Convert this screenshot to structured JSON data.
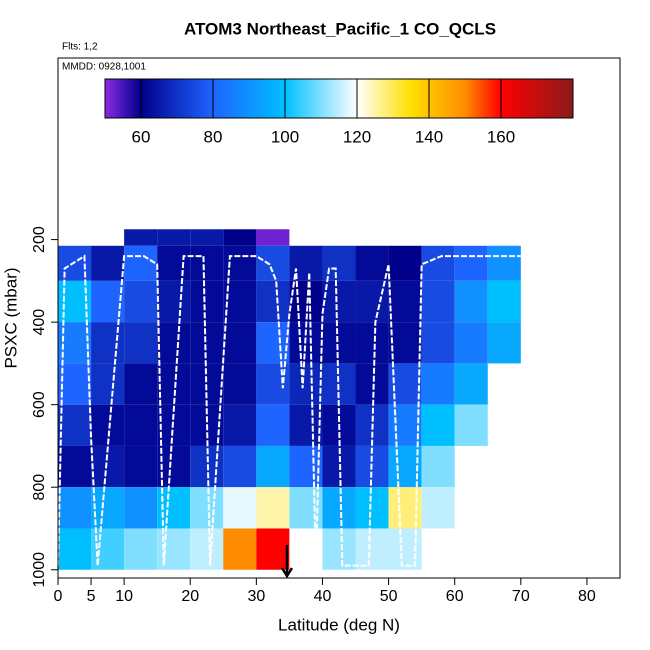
{
  "chart_data": {
    "type": "curtain",
    "title": "ATOM3 Northeast_Pacific_1 CO_QCLS",
    "subtitle": "Flts: 1,2",
    "annotation": "MMDD: 0928,1001",
    "x_label": "Latitude (deg N)",
    "y_label": "PSXC (mbar)",
    "xlim": [
      0,
      85
    ],
    "xticks": [
      0,
      5,
      10,
      20,
      30,
      40,
      50,
      60,
      70,
      80
    ],
    "ylim": [
      1020,
      -240
    ],
    "yticks": [
      200,
      400,
      600,
      800,
      1000
    ],
    "x_edges": [
      0,
      5,
      10,
      15,
      20,
      25,
      30,
      35,
      40,
      45,
      50,
      55,
      60,
      65,
      70
    ],
    "y_edges": [
      175,
      215,
      300,
      400,
      500,
      600,
      700,
      800,
      900,
      1000
    ],
    "values": [
      [
        null,
        null,
        65,
        65,
        65,
        60,
        52,
        null,
        null,
        null,
        null,
        null,
        null,
        null
      ],
      [
        75,
        65,
        80,
        62,
        62,
        62,
        75,
        65,
        70,
        62,
        60,
        75,
        80,
        90
      ],
      [
        100,
        80,
        75,
        65,
        62,
        62,
        70,
        60,
        65,
        65,
        62,
        75,
        90,
        100
      ],
      [
        85,
        70,
        70,
        62,
        62,
        62,
        80,
        62,
        62,
        62,
        62,
        75,
        85,
        95
      ],
      [
        80,
        70,
        62,
        62,
        62,
        62,
        75,
        68,
        70,
        62,
        75,
        85,
        95,
        null
      ],
      [
        70,
        62,
        62,
        62,
        62,
        65,
        80,
        65,
        62,
        70,
        85,
        100,
        110,
        null
      ],
      [
        62,
        65,
        62,
        62,
        70,
        75,
        95,
        80,
        65,
        75,
        95,
        110,
        null,
        null
      ],
      [
        90,
        95,
        90,
        100,
        110,
        118,
        125,
        110,
        95,
        100,
        128,
        115,
        null,
        null
      ],
      [
        100,
        105,
        110,
        112,
        115,
        150,
        160,
        120,
        112,
        115,
        115,
        null,
        null,
        null
      ]
    ],
    "colorbar": {
      "lim": [
        50,
        180
      ],
      "ticks": [
        60,
        80,
        100,
        120,
        140,
        160
      ],
      "stops": [
        {
          "value": 50,
          "color": "#8a2be2"
        },
        {
          "value": 60,
          "color": "#00008b"
        },
        {
          "value": 80,
          "color": "#1e64ff"
        },
        {
          "value": 100,
          "color": "#00bfff"
        },
        {
          "value": 120,
          "color": "#ffffff"
        },
        {
          "value": 135,
          "color": "#ffe000"
        },
        {
          "value": 150,
          "color": "#ff8c00"
        },
        {
          "value": 160,
          "color": "#ff0000"
        },
        {
          "value": 180,
          "color": "#8b1a1a"
        }
      ]
    },
    "track": {
      "color": "#ffffff",
      "x": [
        0,
        1,
        4,
        5,
        6,
        10,
        13,
        15,
        16,
        19,
        22,
        23,
        26,
        30,
        32,
        33,
        34,
        35,
        36,
        37,
        38,
        39,
        40,
        41,
        42,
        43,
        47,
        48,
        50,
        52,
        54,
        55,
        58,
        62,
        66,
        70
      ],
      "y": [
        990,
        270,
        240,
        680,
        990,
        240,
        240,
        260,
        990,
        240,
        240,
        990,
        240,
        240,
        260,
        300,
        560,
        380,
        270,
        560,
        280,
        990,
        380,
        270,
        270,
        990,
        990,
        400,
        260,
        990,
        990,
        260,
        240,
        240,
        240,
        240
      ]
    }
  }
}
